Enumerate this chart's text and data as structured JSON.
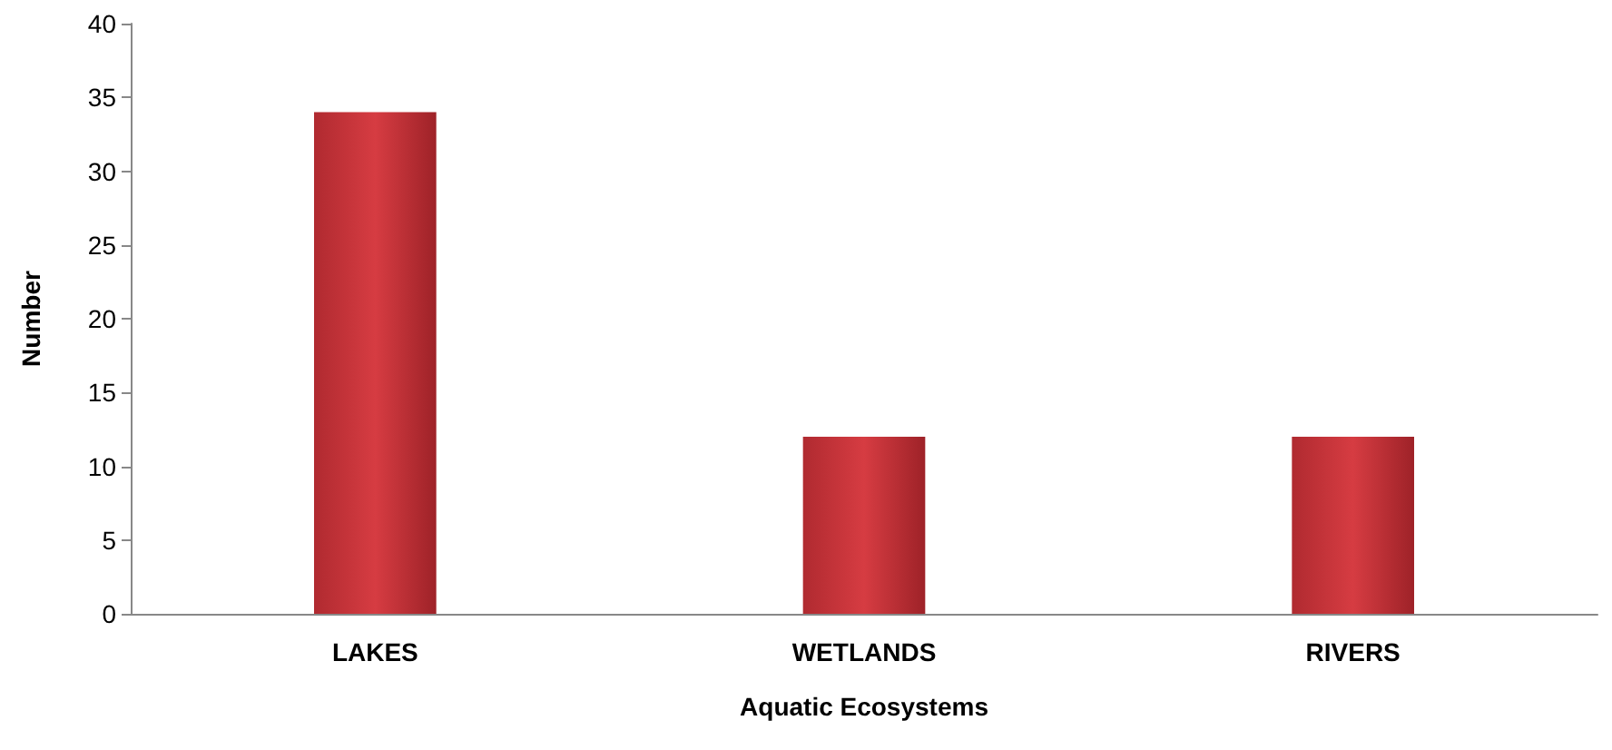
{
  "chart_data": {
    "type": "bar",
    "xlabel": "Aquatic Ecosystems",
    "ylabel": "Number",
    "categories": [
      "LAKES",
      "WETLANDS",
      "RIVERS"
    ],
    "values": [
      34,
      12,
      12
    ],
    "color": "#d63c42",
    "ylim": [
      0,
      40
    ],
    "yticks": [
      0,
      5,
      10,
      15,
      20,
      25,
      30,
      35,
      40
    ],
    "grid": false
  }
}
